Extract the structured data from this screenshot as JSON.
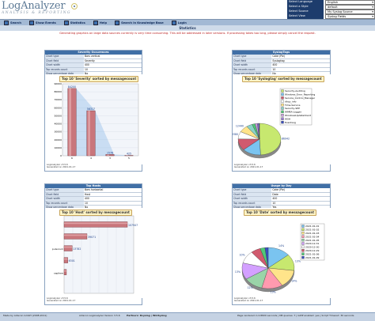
{
  "header": {
    "logo_main": "LogAnalyzer",
    "logo_sub": "ANALYSIS & REPORTING",
    "options": [
      {
        "label": "Select Language",
        "value": "English"
      },
      {
        "label": "Select a Style",
        "value": "default"
      },
      {
        "label": "Select Source",
        "value": "My Syslog Source"
      },
      {
        "label": "Select View",
        "value": "Syslog Fields"
      }
    ]
  },
  "nav": {
    "items": [
      "Search",
      "Show Events",
      "Statistics",
      "Help",
      "Search in Knowledge Base",
      "Login"
    ]
  },
  "page_title": "Statistics",
  "notice": "Generating graphics on large data sources currently is very time consuming. This will be addressed in later versions. If processing takes too long, please simply cancel the request.",
  "panels": [
    {
      "head": "Severity Occurences",
      "rows": [
        {
          "k": "Chart type",
          "v": "Bars vertical"
        },
        {
          "k": "Chart field",
          "v": "Severity"
        },
        {
          "k": "Chart width",
          "v": "400"
        },
        {
          "k": "Top records count",
          "v": "10"
        },
        {
          "k": "Show percentage data",
          "v": "No"
        }
      ],
      "chart_title": "Top 10 'Severity' sorted by messagecount",
      "footer_1": "LogAnalyzer v3.5.6",
      "footer_2": "Generated on 2021-01-17"
    },
    {
      "head": "SyslogTags",
      "rows": [
        {
          "k": "Chart type",
          "v": "Cake (Pie)"
        },
        {
          "k": "Chart field",
          "v": "Syslogtag"
        },
        {
          "k": "Chart width",
          "v": "400"
        },
        {
          "k": "Top records count",
          "v": "10"
        },
        {
          "k": "Show percentage data",
          "v": "No"
        }
      ],
      "chart_title": "Top 10 'Syslogtag' sorted by messagecount",
      "footer_1": "LogAnalyzer v3.5.6",
      "footer_2": "Generated on 2021-01-17"
    },
    {
      "head": "Top Hosts",
      "rows": [
        {
          "k": "Chart type",
          "v": "Bars horizontal"
        },
        {
          "k": "Chart field",
          "v": "Host"
        },
        {
          "k": "Chart width",
          "v": "400"
        },
        {
          "k": "Top records count",
          "v": "10"
        },
        {
          "k": "Show percentage data",
          "v": "No"
        }
      ],
      "chart_title": "Top 10 'Host' sorted by messagecount",
      "footer_1": "LogAnalyzer v3.5.6",
      "footer_2": "Generated on 2021-01-17"
    },
    {
      "head": "Usage by Day",
      "rows": [
        {
          "k": "Chart type",
          "v": "Cake (Pie)"
        },
        {
          "k": "Chart field",
          "v": "Date"
        },
        {
          "k": "Chart width",
          "v": "400"
        },
        {
          "k": "Top records count",
          "v": "10"
        },
        {
          "k": "Show percentage data",
          "v": "Yes"
        }
      ],
      "chart_title": "Top 10 'Date' sorted by messagecount",
      "footer_1": "LogAnalyzer v3.5.6",
      "footer_2": "Generated on 2021-01-17"
    }
  ],
  "chart_data": [
    {
      "type": "bar",
      "title": "Top 10 'Severity' sorted by messagecount",
      "categories": [
        "6",
        "4",
        "3",
        "5"
      ],
      "values": [
        84200,
        56317,
        1578,
        425
      ],
      "value_labels": [
        "84200",
        "56317",
        "1578",
        "425"
      ],
      "ylim": [
        0,
        90000
      ],
      "yticks": [
        "0",
        "10000",
        "20000",
        "30000",
        "40000",
        "50000",
        "60000",
        "70000",
        "80000",
        "90000"
      ]
    },
    {
      "type": "pie",
      "title": "Top 10 'Syslogtag' sorted by messagecount",
      "labels": [
        "Security-Auditing",
        "Windows_Error_Reporting",
        "Service_Control_Manager",
        "dhcp_info",
        "Time-Service",
        "Security-SPP",
        "WMRA-Logger",
        "WindowsUpdateClient",
        "WSH",
        "EventLog"
      ],
      "values": [
        86942,
        25000,
        21000,
        13380,
        12440,
        8000,
        4000,
        3000,
        2000,
        1000
      ],
      "value_labels": [
        "86942",
        "",
        "",
        "13380",
        "12440",
        "",
        "",
        "",
        "",
        ""
      ],
      "colors": [
        "#c7e86f",
        "#7ac4f0",
        "#d05a6e",
        "#ffffff",
        "#ffe48a",
        "#8bd3c7",
        "#50c878",
        "#c9a0dc",
        "#9a7ad6",
        "#3a4ec0"
      ]
    },
    {
      "type": "bar",
      "title": "Top 10 'Host' sorted by messagecount",
      "orientation": "horizontal",
      "categories": [
        "",
        "",
        "pulsorum",
        "",
        "sapliere"
      ],
      "values": [
        107947,
        39071,
        13782,
        6301,
        4000
      ],
      "value_labels": [
        "107947",
        "39071",
        "13782",
        "6301",
        ""
      ]
    },
    {
      "type": "pie",
      "title": "Top 10 'Date' sorted by messagecount",
      "labels": [
        "2021-01-01",
        "2021-01-02",
        "2021-01-03",
        "2021-01-04",
        "2021-01-05",
        "2020-12-31",
        "2020-12-30",
        "2020-12-29",
        "2021-01-06",
        "2021-01-09"
      ],
      "values": [
        14,
        13,
        14,
        13,
        12,
        13,
        10,
        6,
        3,
        2
      ],
      "value_labels": [
        "14%",
        "13%",
        "14%",
        "13%",
        "12%",
        "13%",
        "10%",
        "",
        "",
        ""
      ],
      "colors": [
        "#7ac4f0",
        "#c7e86f",
        "#ffe48a",
        "#ff9aaf",
        "#9ad4a8",
        "#d3a0ff",
        "#ffffff",
        "#d05a6e",
        "#50c878",
        "#3a4ec0"
      ]
    }
  ],
  "footer": {
    "left": "Made by Adiscon GmbH (2008-2011)",
    "product": "Adiscon LogAnalyzer Version 3.5.6",
    "partners_label": "Partners:",
    "partners": "Rsyslog | WinSyslog",
    "right": "Page rendered in 0.8820 seconds | DB queries: 7 | GZIP enabled: yes | Script Timeout: 30 seconds"
  }
}
